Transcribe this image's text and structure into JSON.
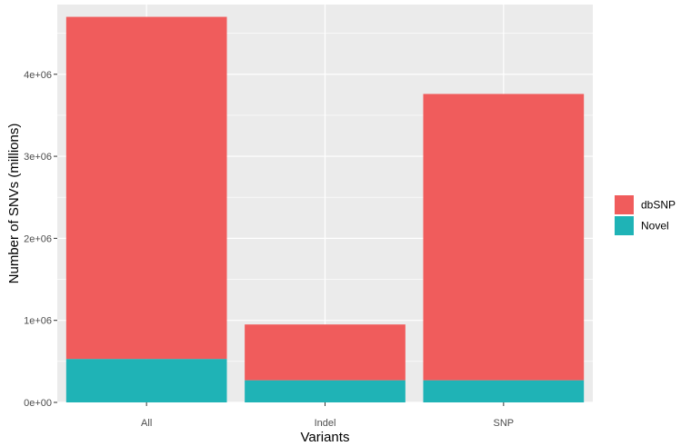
{
  "chart_data": {
    "type": "bar",
    "stacked": true,
    "categories": [
      "All",
      "Indel",
      "SNP"
    ],
    "series": [
      {
        "name": "Novel",
        "values": [
          530000,
          270000,
          270000
        ],
        "color": "#1fb3b6"
      },
      {
        "name": "dbSNP",
        "values": [
          4170000,
          680000,
          3490000
        ],
        "color": "#f05c5c"
      }
    ],
    "totals": [
      4700000,
      950000,
      3760000
    ],
    "xlabel": "Variants",
    "ylabel": "Number of SNVs (millions)",
    "ylim": [
      0,
      4850000
    ],
    "yticks": [
      0,
      1000000,
      2000000,
      3000000,
      4000000
    ],
    "ytick_labels": [
      "0e+00",
      "1e+06",
      "2e+06",
      "3e+06",
      "4e+06"
    ],
    "legend": {
      "items": [
        {
          "name": "dbSNP",
          "color": "#f05c5c"
        },
        {
          "name": "Novel",
          "color": "#1fb3b6"
        }
      ],
      "placement": "right"
    },
    "grid": true,
    "panel_background": "#ebebeb",
    "grid_color": "#ffffff"
  }
}
